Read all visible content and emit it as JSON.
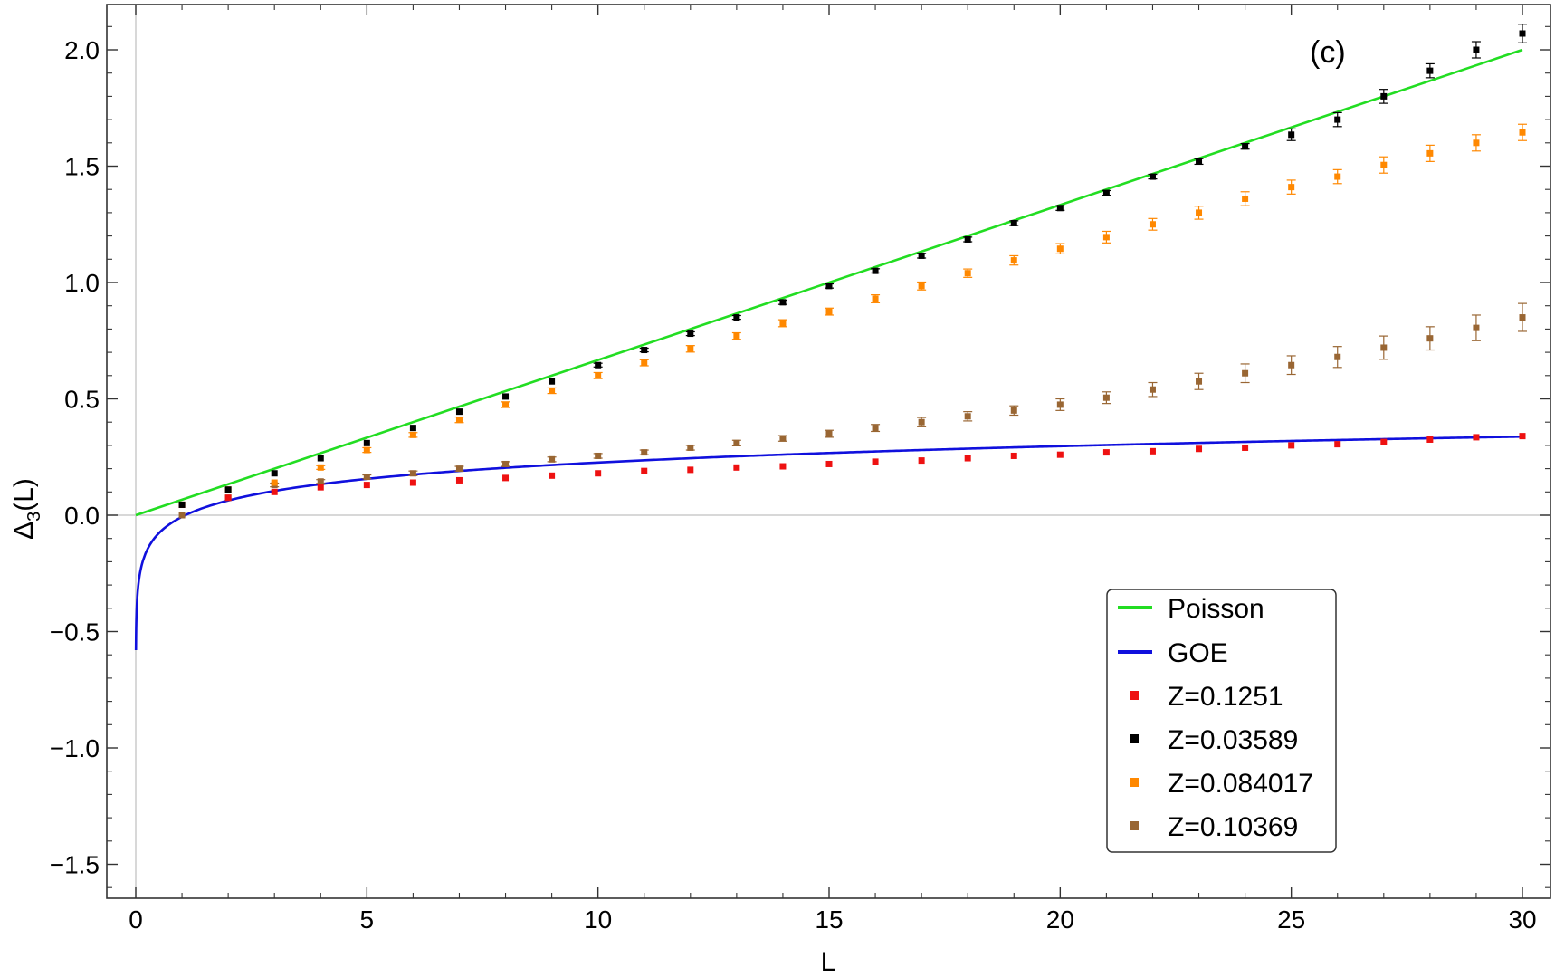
{
  "chart_data": {
    "type": "scatter",
    "panel_label": "(c)",
    "xlabel": "L",
    "ylabel_main": "Δ",
    "ylabel_sub": "3",
    "ylabel_tail": "(L)",
    "xlim": [
      -0.6,
      30.6
    ],
    "ylim": [
      -1.65,
      2.2
    ],
    "xticks": [
      0,
      5,
      10,
      15,
      20,
      25,
      30
    ],
    "xtick_labels": [
      "0",
      "5",
      "10",
      "15",
      "20",
      "25",
      "30"
    ],
    "yticks": [
      -1.5,
      -1.0,
      -0.5,
      0.0,
      0.5,
      1.0,
      1.5,
      2.0
    ],
    "ytick_labels": [
      "−1.5",
      "−1.0",
      "−0.5",
      "0.0",
      "0.5",
      "1.0",
      "1.5",
      "2.0"
    ],
    "grid": false,
    "legend_position": "bottom-right",
    "curves": [
      {
        "name": "Poisson",
        "color": "#22dd22",
        "formula": "L/15"
      },
      {
        "name": "GOE",
        "color": "#1010dd",
        "formula": "(ln(2πL) + 0.5772 − 5/4 − π²/8)/π²"
      }
    ],
    "series": [
      {
        "name": "Z=0.1251",
        "color": "#ee1111",
        "x": [
          1,
          2,
          3,
          4,
          5,
          6,
          7,
          8,
          9,
          10,
          11,
          12,
          13,
          14,
          15,
          16,
          17,
          18,
          19,
          20,
          21,
          22,
          23,
          24,
          25,
          26,
          27,
          28,
          29,
          30
        ],
        "y": [
          0.045,
          0.075,
          0.1,
          0.12,
          0.13,
          0.14,
          0.15,
          0.16,
          0.17,
          0.18,
          0.19,
          0.195,
          0.205,
          0.21,
          0.22,
          0.23,
          0.235,
          0.245,
          0.255,
          0.26,
          0.27,
          0.275,
          0.285,
          0.29,
          0.3,
          0.305,
          0.315,
          0.325,
          0.335,
          0.34
        ],
        "err": [
          0.004,
          0.004,
          0.004,
          0.004,
          0.004,
          0.004,
          0.004,
          0.004,
          0.004,
          0.004,
          0.004,
          0.004,
          0.005,
          0.005,
          0.005,
          0.005,
          0.005,
          0.005,
          0.005,
          0.005,
          0.005,
          0.005,
          0.005,
          0.005,
          0.005,
          0.005,
          0.005,
          0.006,
          0.006,
          0.006
        ]
      },
      {
        "name": "Z=0.03589",
        "color": "#000000",
        "x": [
          1,
          2,
          3,
          4,
          5,
          6,
          7,
          8,
          9,
          10,
          11,
          12,
          13,
          14,
          15,
          16,
          17,
          18,
          19,
          20,
          21,
          22,
          23,
          24,
          25,
          26,
          27,
          28,
          29,
          30
        ],
        "y": [
          0.045,
          0.11,
          0.18,
          0.245,
          0.31,
          0.375,
          0.445,
          0.51,
          0.575,
          0.645,
          0.71,
          0.78,
          0.85,
          0.915,
          0.985,
          1.05,
          1.115,
          1.185,
          1.255,
          1.32,
          1.385,
          1.455,
          1.52,
          1.585,
          1.635,
          1.7,
          1.8,
          1.91,
          2.0,
          2.07
        ],
        "err": [
          0.005,
          0.006,
          0.006,
          0.006,
          0.006,
          0.007,
          0.007,
          0.007,
          0.007,
          0.008,
          0.008,
          0.008,
          0.008,
          0.009,
          0.009,
          0.009,
          0.01,
          0.01,
          0.01,
          0.01,
          0.01,
          0.01,
          0.012,
          0.012,
          0.025,
          0.03,
          0.03,
          0.03,
          0.035,
          0.04
        ]
      },
      {
        "name": "Z=0.084017",
        "color": "#ff8800",
        "x": [
          1,
          2,
          3,
          4,
          5,
          6,
          7,
          8,
          9,
          10,
          11,
          12,
          13,
          14,
          15,
          16,
          17,
          18,
          19,
          20,
          21,
          22,
          23,
          24,
          25,
          26,
          27,
          28,
          29,
          30
        ],
        "y": [
          0.045,
          0.11,
          0.14,
          0.205,
          0.28,
          0.345,
          0.41,
          0.475,
          0.535,
          0.6,
          0.655,
          0.715,
          0.77,
          0.825,
          0.875,
          0.93,
          0.985,
          1.04,
          1.095,
          1.145,
          1.195,
          1.25,
          1.3,
          1.36,
          1.41,
          1.455,
          1.505,
          1.555,
          1.6,
          1.645
        ],
        "err": [
          0.005,
          0.005,
          0.006,
          0.008,
          0.01,
          0.01,
          0.012,
          0.012,
          0.012,
          0.013,
          0.013,
          0.014,
          0.014,
          0.015,
          0.015,
          0.017,
          0.017,
          0.018,
          0.02,
          0.022,
          0.025,
          0.025,
          0.028,
          0.03,
          0.03,
          0.03,
          0.035,
          0.035,
          0.035,
          0.035
        ]
      },
      {
        "name": "Z=0.10369",
        "color": "#996633",
        "x": [
          1,
          2,
          3,
          4,
          5,
          6,
          7,
          8,
          9,
          10,
          11,
          12,
          13,
          14,
          15,
          16,
          17,
          18,
          19,
          20,
          21,
          22,
          23,
          24,
          25,
          26,
          27,
          28,
          29,
          30
        ],
        "y": [
          0.0,
          0.075,
          0.13,
          0.145,
          0.165,
          0.18,
          0.2,
          0.22,
          0.24,
          0.255,
          0.27,
          0.29,
          0.31,
          0.33,
          0.35,
          0.375,
          0.4,
          0.425,
          0.45,
          0.475,
          0.505,
          0.54,
          0.575,
          0.61,
          0.645,
          0.68,
          0.72,
          0.76,
          0.805,
          0.85
        ],
        "err": [
          0.005,
          0.006,
          0.008,
          0.008,
          0.008,
          0.01,
          0.01,
          0.01,
          0.01,
          0.01,
          0.01,
          0.01,
          0.012,
          0.012,
          0.015,
          0.015,
          0.02,
          0.02,
          0.02,
          0.025,
          0.025,
          0.03,
          0.035,
          0.04,
          0.04,
          0.045,
          0.05,
          0.05,
          0.055,
          0.06
        ]
      }
    ],
    "legend": [
      {
        "kind": "line",
        "label": "Poisson",
        "color": "#22dd22"
      },
      {
        "kind": "line",
        "label": "GOE",
        "color": "#1010dd"
      },
      {
        "kind": "marker",
        "label": "Z=0.1251",
        "color": "#ee1111"
      },
      {
        "kind": "marker",
        "label": "Z=0.03589",
        "color": "#000000"
      },
      {
        "kind": "marker",
        "label": "Z=0.084017",
        "color": "#ff8800"
      },
      {
        "kind": "marker",
        "label": "Z=0.10369",
        "color": "#996633"
      }
    ]
  }
}
